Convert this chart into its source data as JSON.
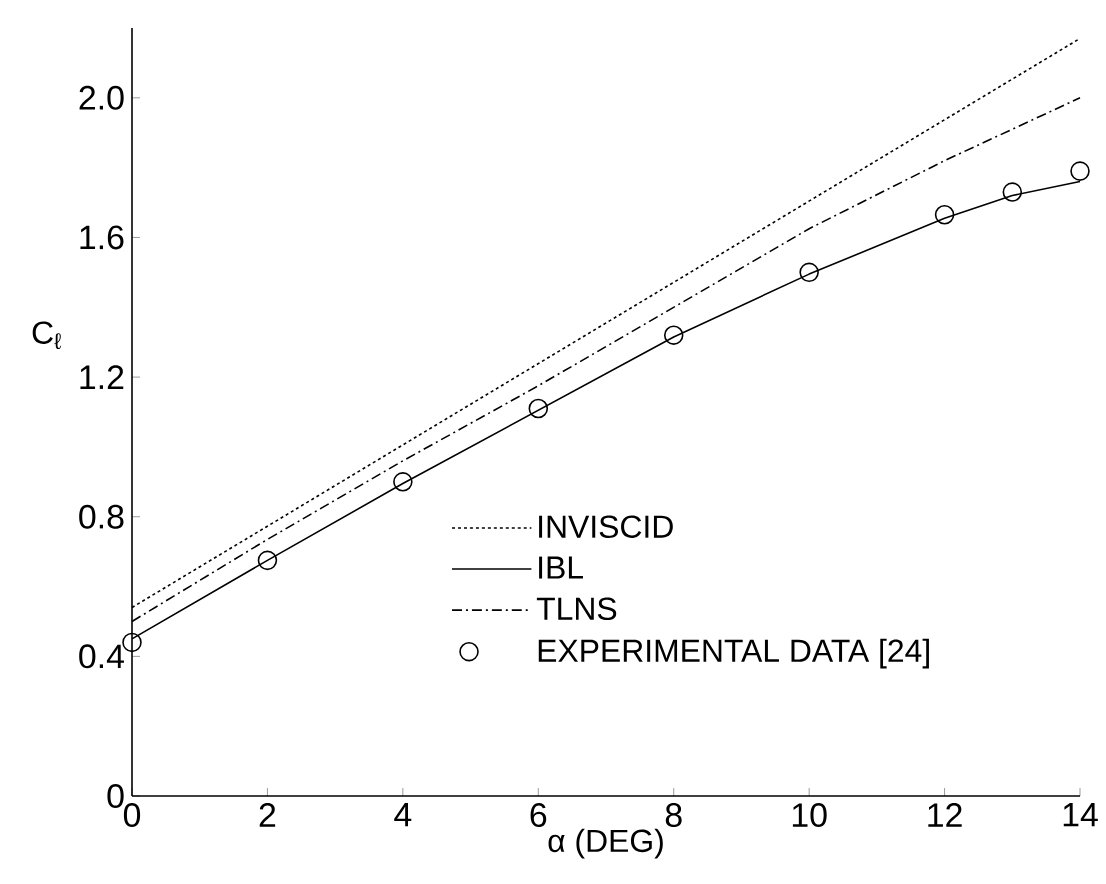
{
  "chart_data": {
    "type": "line",
    "xlabel": "α (DEG)",
    "ylabel": "C$_{ℓ}$",
    "x": [
      0,
      2,
      4,
      6,
      8,
      10,
      12,
      13,
      14
    ],
    "series": [
      {
        "name": "INVISCID",
        "color": "#000000",
        "line_style": "dotted",
        "x": [
          0,
          14
        ],
        "values": [
          0.54,
          2.17
        ]
      },
      {
        "name": "IBL",
        "color": "#000000",
        "line_style": "solid",
        "x": [
          0,
          2,
          4,
          6,
          8,
          10,
          12,
          13,
          14
        ],
        "values": [
          0.45,
          0.675,
          0.895,
          1.105,
          1.315,
          1.495,
          1.655,
          1.72,
          1.76
        ]
      },
      {
        "name": "TLNS",
        "color": "#000000",
        "line_style": "dashed",
        "x": [
          0,
          2,
          4,
          6,
          8,
          10,
          12,
          14
        ],
        "values": [
          0.5,
          0.735,
          0.96,
          1.175,
          1.4,
          1.625,
          1.82,
          2.0
        ]
      },
      {
        "name": "EXPERIMENTAL DATA [24]",
        "type": "scatter",
        "marker": "circle",
        "color": "#000000",
        "values": [
          0.44,
          0.675,
          0.9,
          1.11,
          1.32,
          1.5,
          1.665,
          1.73,
          1.79
        ]
      }
    ],
    "xlim": [
      0,
      14
    ],
    "ylim": [
      0,
      2.2
    ],
    "xticks": [
      0,
      2,
      4,
      6,
      8,
      10,
      12,
      14
    ],
    "yticks": [
      0,
      0.4,
      0.8,
      1.2,
      1.6,
      {
        "value": 2,
        "label": "2.0"
      }
    ],
    "grid": false,
    "legend": "bottom right"
  }
}
